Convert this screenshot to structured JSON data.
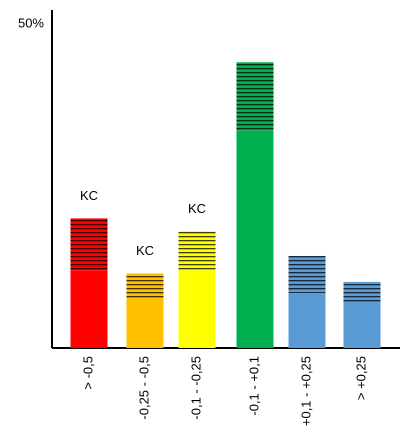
{
  "chart_data": {
    "type": "bar",
    "stacked": true,
    "categories": [
      "> -0,5",
      "-0,25 - -0,5",
      "-0,1 - -0,25",
      "-0,1 - +0,1",
      "+0,1 - +0,25",
      "> +0,25"
    ],
    "colors": [
      "#ff0000",
      "#ffc000",
      "#ffff00",
      "#00b050",
      "#5b9bd5",
      "#5b9bd5"
    ],
    "series": [
      {
        "values": [
          12,
          7.5,
          12,
          33.6,
          8.5,
          7.1
        ]
      },
      {
        "values": [
          8,
          4,
          6,
          10.5,
          5.7,
          3.1
        ],
        "hatch": true
      }
    ],
    "annotations": [
      {
        "text": "KC",
        "category": 0
      },
      {
        "text": "KC",
        "category": 1
      },
      {
        "text": "KC",
        "category": 2
      }
    ],
    "ylim": [
      0,
      50
    ],
    "yticks": [
      {
        "value": 50,
        "label": "50%"
      }
    ]
  }
}
